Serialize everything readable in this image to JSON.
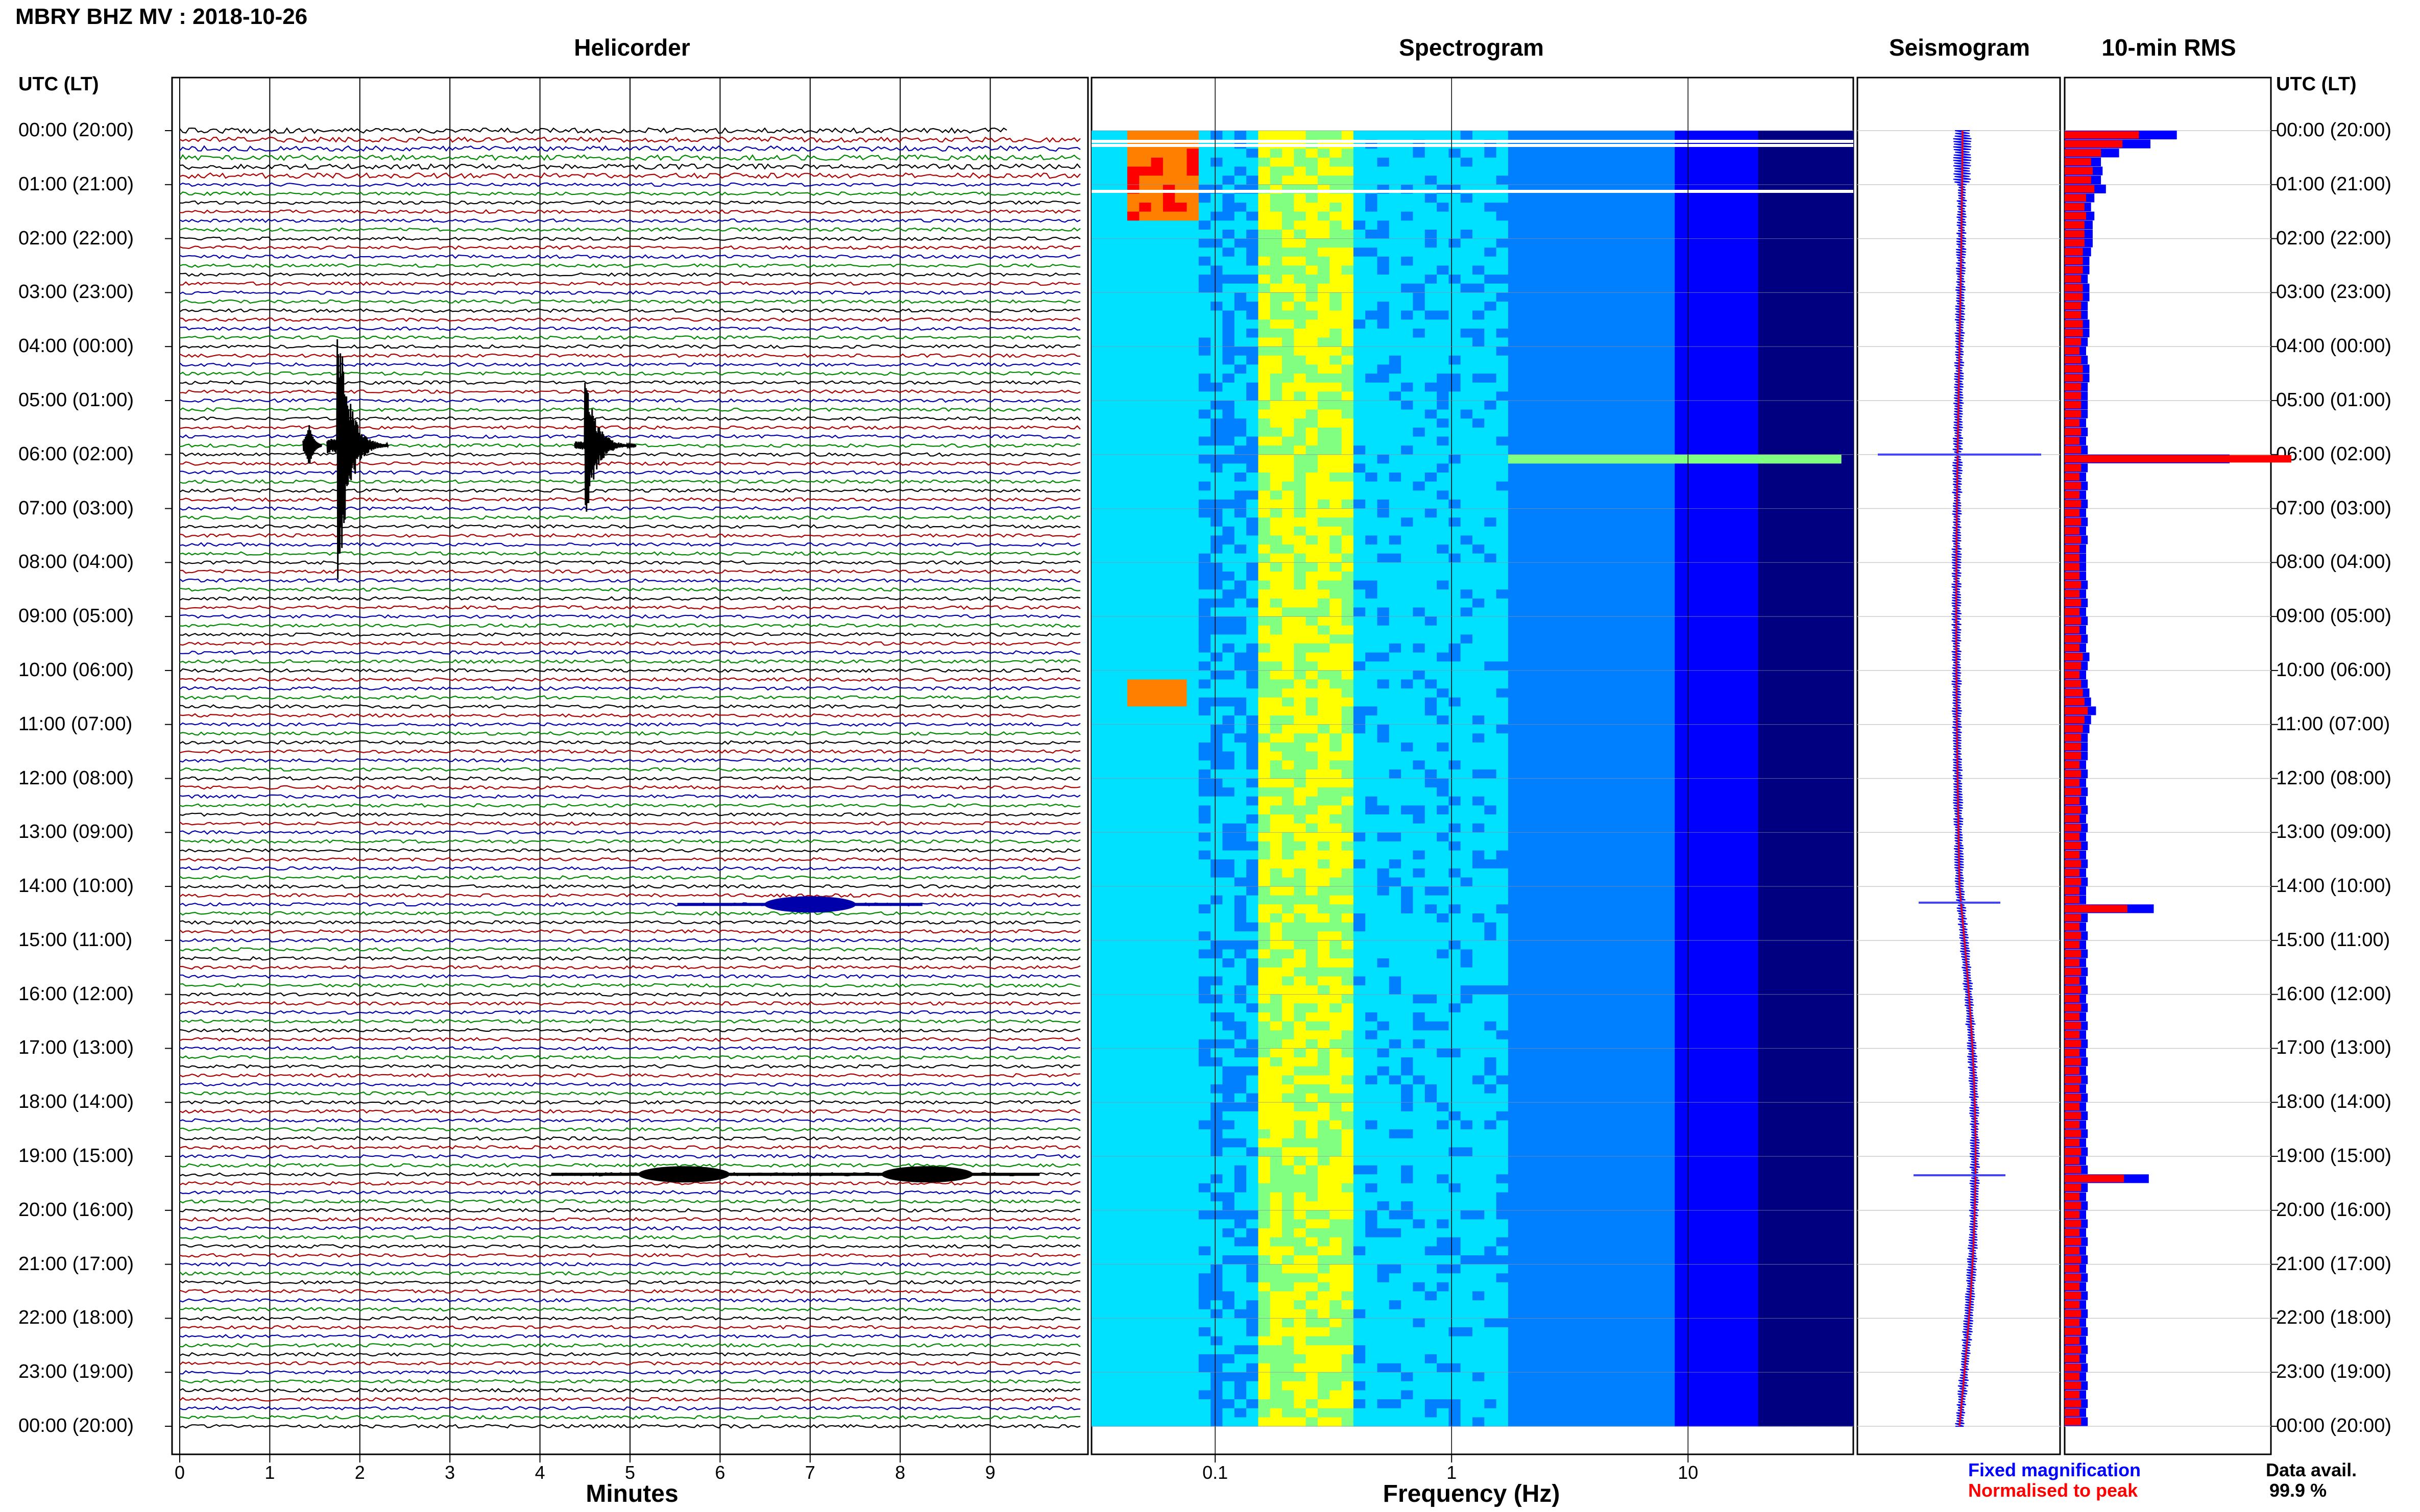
{
  "header": {
    "title": "MBRY BHZ MV : 2018-10-26"
  },
  "panels": {
    "helicorder_title": "Helicorder",
    "spectrogram_title": "Spectrogram",
    "seismogram_title": "Seismogram",
    "rms_title": "10-min RMS"
  },
  "axes": {
    "time_header_left": "UTC (LT)",
    "time_header_right": "UTC (LT)",
    "time_labels": [
      "00:00 (20:00)",
      "01:00 (21:00)",
      "02:00 (22:00)",
      "03:00 (23:00)",
      "04:00 (00:00)",
      "05:00 (01:00)",
      "06:00 (02:00)",
      "07:00 (03:00)",
      "08:00 (04:00)",
      "09:00 (05:00)",
      "10:00 (06:00)",
      "11:00 (07:00)",
      "12:00 (08:00)",
      "13:00 (09:00)",
      "14:00 (10:00)",
      "15:00 (11:00)",
      "16:00 (12:00)",
      "17:00 (13:00)",
      "18:00 (14:00)",
      "19:00 (15:00)",
      "20:00 (16:00)",
      "21:00 (17:00)",
      "22:00 (18:00)",
      "23:00 (19:00)",
      "00:00 (20:00)"
    ],
    "helicorder_xlabel": "Minutes",
    "helicorder_xticks": [
      "0",
      "1",
      "2",
      "3",
      "4",
      "5",
      "6",
      "7",
      "8",
      "9"
    ],
    "spectrogram_xlabel": "Frequency (Hz)",
    "spectrogram_xticks": [
      "0.1",
      "1",
      "10"
    ]
  },
  "legend": {
    "fixed_label": "Fixed magnification",
    "normalised_label": "Normalised to peak",
    "fixed_color": "#0000ff",
    "normalised_color": "#ff0000"
  },
  "availability": {
    "label": "Data avail.",
    "value": "99.9 %"
  },
  "chart_data": [
    {
      "type": "line",
      "panel": "Helicorder",
      "xlabel": "Minutes",
      "xlim": [
        0,
        10
      ],
      "ylabel": "UTC (LT)",
      "trace_colors": [
        "#000000",
        "#aa0000",
        "#0000aa",
        "#008800"
      ],
      "trace_interval_min": 10,
      "events": [
        {
          "time": "05:50",
          "minute": 1.75,
          "label": "large transient"
        },
        {
          "time": "05:50",
          "minute": 4.5,
          "label": "large transient"
        },
        {
          "time": "14:20",
          "minute": 7.0,
          "label": "emergent signal"
        },
        {
          "time": "19:20",
          "minute": 5.6,
          "label": "emergent signal"
        },
        {
          "time": "19:20",
          "minute": 8.3,
          "label": "emergent signal"
        }
      ]
    },
    {
      "type": "heatmap",
      "panel": "Spectrogram",
      "xlabel": "Frequency (Hz)",
      "xscale": "log",
      "xlim": [
        0.03,
        50
      ],
      "colormap": [
        "#000080",
        "#0000ff",
        "#0080ff",
        "#00e0ff",
        "#80ff80",
        "#ffff00",
        "#ff8000",
        "#ff0000"
      ]
    },
    {
      "type": "line",
      "panel": "Seismogram",
      "series": [
        {
          "name": "Fixed magnification",
          "color": "#0000ff"
        },
        {
          "name": "Normalised to peak",
          "color": "#ff0000"
        }
      ]
    },
    {
      "type": "bar",
      "panel": "10-min RMS",
      "orientation": "horizontal",
      "bin_minutes": 10,
      "series": [
        {
          "name": "Fixed magnification",
          "color": "#0000ff"
        },
        {
          "name": "Normalised to peak",
          "color": "#ff0000"
        }
      ],
      "blue_values": [
        0.68,
        0.52,
        0.33,
        0.22,
        0.23,
        0.22,
        0.25,
        0.18,
        0.16,
        0.18,
        0.17,
        0.17,
        0.17,
        0.16,
        0.15,
        0.15,
        0.14,
        0.15,
        0.15,
        0.14,
        0.14,
        0.15,
        0.15,
        0.14,
        0.13,
        0.14,
        0.15,
        0.15,
        0.14,
        0.14,
        0.14,
        0.14,
        0.13,
        0.14,
        0.13,
        0.14,
        1.0,
        0.14,
        0.13,
        0.14,
        0.13,
        0.14,
        0.13,
        0.14,
        0.13,
        0.14,
        0.13,
        0.13,
        0.13,
        0.13,
        0.14,
        0.13,
        0.14,
        0.13,
        0.14,
        0.13,
        0.14,
        0.13,
        0.15,
        0.14,
        0.13,
        0.14,
        0.15,
        0.16,
        0.19,
        0.16,
        0.15,
        0.14,
        0.14,
        0.14,
        0.13,
        0.14,
        0.13,
        0.14,
        0.13,
        0.14,
        0.13,
        0.14,
        0.13,
        0.14,
        0.13,
        0.14,
        0.13,
        0.14,
        0.13,
        0.13,
        0.54,
        0.14,
        0.13,
        0.14,
        0.13,
        0.14,
        0.13,
        0.14,
        0.13,
        0.14,
        0.13,
        0.14,
        0.13,
        0.14,
        0.13,
        0.14,
        0.13,
        0.14,
        0.13,
        0.14,
        0.13,
        0.14,
        0.13,
        0.14,
        0.13,
        0.14,
        0.13,
        0.14,
        0.13,
        0.14,
        0.51,
        0.14,
        0.13,
        0.14,
        0.13,
        0.14,
        0.13,
        0.14,
        0.13,
        0.14,
        0.13,
        0.14,
        0.13,
        0.14,
        0.13,
        0.14,
        0.13,
        0.14,
        0.13,
        0.14,
        0.13,
        0.14,
        0.13,
        0.14,
        0.13,
        0.14,
        0.13,
        0.14
      ],
      "red_values": [
        0.45,
        0.35,
        0.22,
        0.16,
        0.17,
        0.16,
        0.18,
        0.13,
        0.12,
        0.13,
        0.12,
        0.12,
        0.12,
        0.11,
        0.11,
        0.11,
        0.1,
        0.11,
        0.11,
        0.1,
        0.1,
        0.11,
        0.11,
        0.1,
        0.09,
        0.1,
        0.11,
        0.11,
        0.1,
        0.1,
        0.1,
        0.1,
        0.09,
        0.1,
        0.09,
        0.1,
        1.0,
        0.1,
        0.09,
        0.1,
        0.09,
        0.1,
        0.09,
        0.1,
        0.09,
        0.1,
        0.09,
        0.09,
        0.09,
        0.09,
        0.1,
        0.09,
        0.1,
        0.09,
        0.1,
        0.09,
        0.1,
        0.09,
        0.11,
        0.1,
        0.09,
        0.1,
        0.11,
        0.12,
        0.14,
        0.12,
        0.11,
        0.1,
        0.1,
        0.1,
        0.09,
        0.1,
        0.09,
        0.1,
        0.09,
        0.1,
        0.09,
        0.1,
        0.09,
        0.1,
        0.09,
        0.1,
        0.09,
        0.1,
        0.09,
        0.09,
        0.38,
        0.1,
        0.09,
        0.1,
        0.09,
        0.1,
        0.09,
        0.1,
        0.09,
        0.1,
        0.09,
        0.1,
        0.09,
        0.1,
        0.09,
        0.1,
        0.09,
        0.1,
        0.09,
        0.1,
        0.09,
        0.1,
        0.09,
        0.1,
        0.09,
        0.1,
        0.09,
        0.1,
        0.09,
        0.1,
        0.36,
        0.1,
        0.09,
        0.1,
        0.09,
        0.1,
        0.09,
        0.1,
        0.09,
        0.1,
        0.09,
        0.1,
        0.09,
        0.1,
        0.09,
        0.1,
        0.09,
        0.1,
        0.09,
        0.1,
        0.09,
        0.1,
        0.09,
        0.1,
        0.09,
        0.1,
        0.09,
        0.1
      ]
    }
  ]
}
